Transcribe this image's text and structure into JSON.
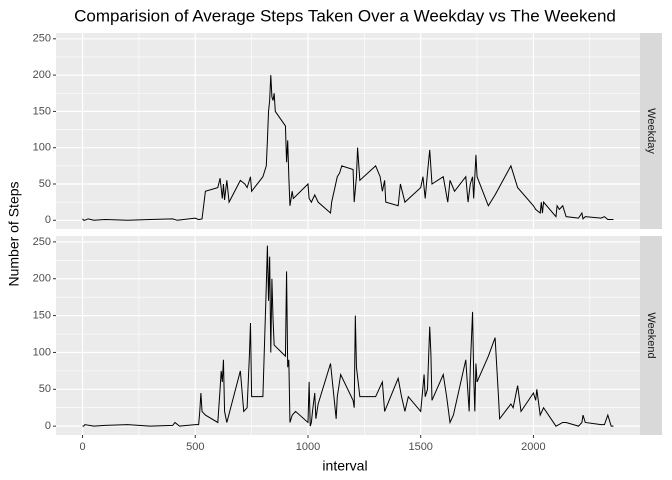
{
  "title": "Comparision of Average Steps Taken Over a Weekday vs The Weekend",
  "x_label": "interval",
  "y_label": "Number of Steps",
  "chart_data": [
    {
      "type": "line",
      "facet": "Weekday",
      "color": "#000000",
      "grid": true,
      "xlim": [
        -117.75,
        2472.75
      ],
      "ylim": [
        -12,
        258
      ],
      "xticks": [
        0,
        500,
        1000,
        1500,
        2000
      ],
      "yticks": [
        0,
        50,
        100,
        150,
        200,
        250
      ],
      "x": [
        0,
        5,
        10,
        25,
        50,
        100,
        200,
        300,
        400,
        420,
        500,
        515,
        530,
        545,
        600,
        610,
        620,
        625,
        630,
        640,
        650,
        700,
        720,
        730,
        745,
        750,
        800,
        815,
        820,
        825,
        830,
        835,
        840,
        845,
        850,
        855,
        900,
        905,
        910,
        915,
        920,
        930,
        935,
        1000,
        1005,
        1015,
        1030,
        1045,
        1100,
        1105,
        1130,
        1140,
        1150,
        1200,
        1205,
        1215,
        1220,
        1230,
        1300,
        1320,
        1330,
        1340,
        1345,
        1400,
        1410,
        1430,
        1500,
        1510,
        1520,
        1530,
        1540,
        1550,
        1600,
        1620,
        1630,
        1650,
        1700,
        1710,
        1720,
        1730,
        1735,
        1745,
        1750,
        1800,
        1830,
        1900,
        1930,
        2000,
        2010,
        2030,
        2035,
        2040,
        2045,
        2100,
        2105,
        2115,
        2130,
        2145,
        2200,
        2215,
        2220,
        2230,
        2300,
        2315,
        2330,
        2355
      ],
      "values": [
        2,
        0,
        0,
        2,
        0,
        1,
        0,
        1,
        2,
        0,
        3,
        1,
        2,
        40,
        45,
        58,
        30,
        50,
        28,
        55,
        25,
        55,
        50,
        45,
        60,
        40,
        60,
        75,
        110,
        150,
        165,
        200,
        170,
        165,
        175,
        150,
        130,
        80,
        110,
        60,
        20,
        40,
        30,
        50,
        30,
        25,
        35,
        25,
        10,
        25,
        60,
        65,
        75,
        70,
        25,
        60,
        100,
        55,
        75,
        60,
        40,
        55,
        25,
        20,
        50,
        25,
        45,
        60,
        30,
        65,
        97,
        50,
        60,
        25,
        55,
        40,
        60,
        25,
        50,
        60,
        30,
        90,
        60,
        20,
        35,
        75,
        45,
        20,
        15,
        10,
        25,
        10,
        25,
        5,
        20,
        15,
        20,
        5,
        3,
        10,
        2,
        5,
        3,
        5,
        1,
        1
      ]
    },
    {
      "type": "line",
      "facet": "Weekend",
      "color": "#000000",
      "grid": true,
      "xlim": [
        -117.75,
        2472.75
      ],
      "ylim": [
        -12,
        258
      ],
      "xticks": [
        0,
        500,
        1000,
        1500,
        2000
      ],
      "yticks": [
        0,
        50,
        100,
        150,
        200,
        250
      ],
      "x": [
        0,
        5,
        10,
        50,
        100,
        200,
        300,
        400,
        410,
        430,
        500,
        515,
        520,
        525,
        530,
        545,
        600,
        610,
        615,
        620,
        625,
        630,
        640,
        700,
        715,
        730,
        740,
        745,
        750,
        800,
        815,
        820,
        825,
        830,
        835,
        840,
        845,
        850,
        900,
        905,
        910,
        915,
        920,
        930,
        945,
        1000,
        1005,
        1010,
        1015,
        1020,
        1030,
        1035,
        1045,
        1100,
        1115,
        1125,
        1130,
        1145,
        1200,
        1205,
        1210,
        1215,
        1230,
        1300,
        1330,
        1340,
        1400,
        1415,
        1430,
        1445,
        1500,
        1515,
        1520,
        1530,
        1540,
        1545,
        1550,
        1600,
        1615,
        1630,
        1645,
        1700,
        1715,
        1720,
        1730,
        1735,
        1740,
        1745,
        1750,
        1800,
        1830,
        1845,
        1850,
        1900,
        1910,
        1930,
        1945,
        2000,
        2010,
        2015,
        2030,
        2045,
        2100,
        2130,
        2145,
        2200,
        2215,
        2220,
        2230,
        2300,
        2315,
        2330,
        2345,
        2355
      ],
      "values": [
        0,
        0,
        2,
        0,
        1,
        2,
        0,
        1,
        5,
        0,
        2,
        2,
        20,
        45,
        20,
        15,
        5,
        50,
        75,
        60,
        90,
        20,
        5,
        75,
        20,
        25,
        95,
        140,
        40,
        40,
        190,
        245,
        170,
        230,
        100,
        200,
        145,
        110,
        95,
        210,
        80,
        90,
        5,
        15,
        20,
        5,
        60,
        0,
        5,
        20,
        45,
        10,
        30,
        85,
        40,
        10,
        40,
        70,
        35,
        25,
        150,
        80,
        40,
        40,
        60,
        20,
        65,
        40,
        20,
        40,
        20,
        70,
        40,
        50,
        135,
        100,
        35,
        70,
        40,
        5,
        15,
        90,
        20,
        80,
        155,
        70,
        20,
        85,
        60,
        95,
        120,
        40,
        10,
        30,
        25,
        55,
        20,
        45,
        35,
        50,
        15,
        25,
        0,
        5,
        5,
        0,
        5,
        15,
        5,
        2,
        2,
        15,
        0,
        0
      ]
    }
  ]
}
